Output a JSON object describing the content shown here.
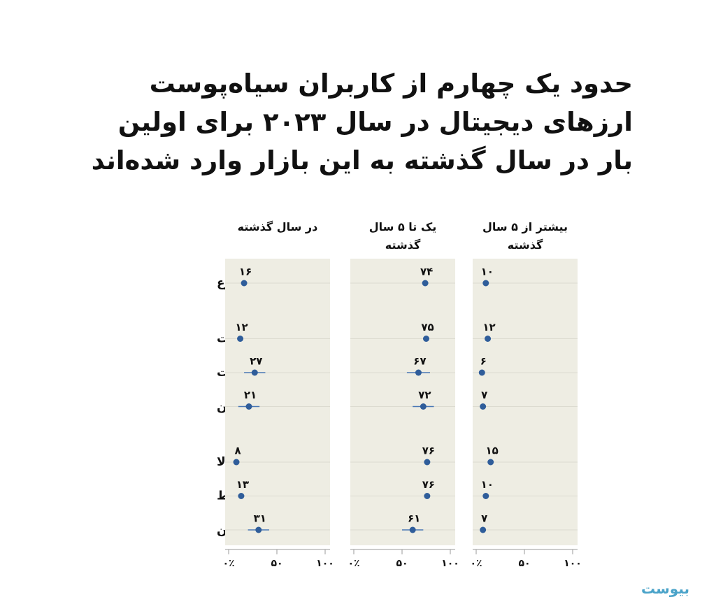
{
  "chart_data": {
    "type": "dot",
    "title": "حدود یک چهارم از کاربران سیاه‌پوست ارزهای دیجیتال در سال ۲۰۲۳ برای اولین بار در سال گذشته به این بازار وارد شده‌اند",
    "categories": [
      "مجموع",
      "سفید پوست",
      "سیاه پوست",
      "لاتین",
      "درآمد بالا",
      "درآمد متوسط",
      "درآمد پایین"
    ],
    "series": [
      {
        "name": "در سال گذشته",
        "color": "#2f5d9a",
        "values": [
          16,
          12,
          27,
          21,
          8,
          13,
          31
        ],
        "value_labels": [
          "۱۶",
          "۱۲",
          "۲۷",
          "۲۱",
          "۸",
          "۱۳",
          "۳۱"
        ],
        "errors": [
          2,
          2,
          11,
          11,
          2,
          3,
          11
        ]
      },
      {
        "name": "یک تا ۵ سال گذشته",
        "color": "#2f5d9a",
        "values": [
          74,
          75,
          67,
          72,
          76,
          76,
          61
        ],
        "value_labels": [
          "۷۴",
          "۷۵",
          "۶۷",
          "۷۲",
          "۷۶",
          "۷۶",
          "۶۱"
        ],
        "errors": [
          3,
          3,
          12,
          11,
          3,
          3,
          11
        ]
      },
      {
        "name": "بیشتر از ۵ سال گذشته",
        "color": "#2f5d9a",
        "values": [
          10,
          12,
          6,
          7,
          15,
          10,
          7
        ],
        "value_labels": [
          "۱۰",
          "۱۲",
          "۶",
          "۷",
          "۱۵",
          "۱۰",
          "۷"
        ],
        "errors": [
          2,
          2,
          3,
          3,
          3,
          2,
          2
        ]
      }
    ],
    "xlim": [
      0,
      100
    ],
    "xticks": [
      {
        "value": 0,
        "label": "۰٪"
      },
      {
        "value": 50,
        "label": "۵۰"
      },
      {
        "value": 100,
        "label": "۱۰۰"
      }
    ],
    "grid": true
  },
  "logo": "بیوست"
}
